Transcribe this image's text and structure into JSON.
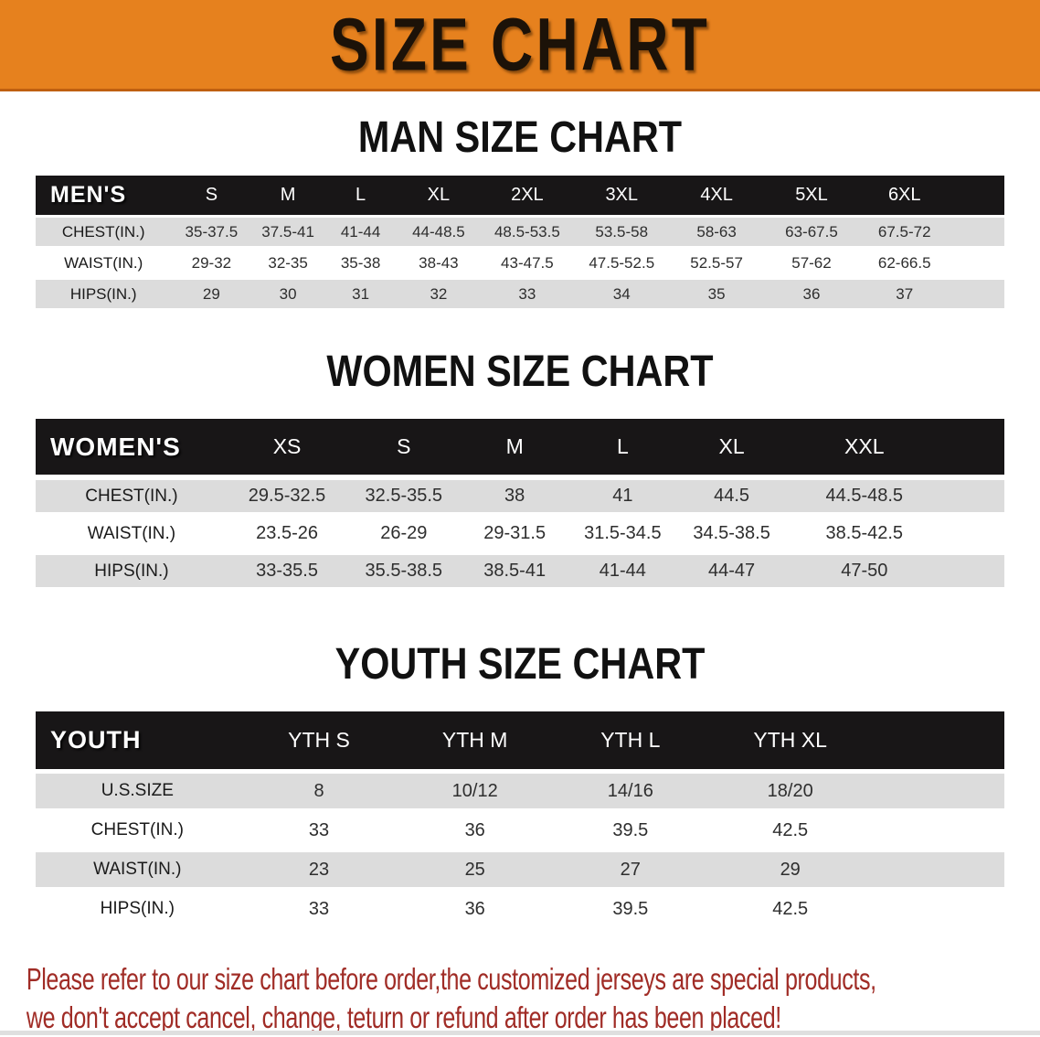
{
  "banner": {
    "title": "SIZE CHART"
  },
  "colors": {
    "banner": "#E6811E",
    "header_bar": "#181617",
    "row_shade": "#DCDCDC",
    "disclaimer": "#A02C26"
  },
  "sections": [
    {
      "title": "MAN SIZE CHART",
      "table": {
        "header": [
          "MEN'S",
          "S",
          "M",
          "L",
          "XL",
          "2XL",
          "3XL",
          "4XL",
          "5XL",
          "6XL"
        ],
        "rows": [
          [
            "CHEST(IN.)",
            "35-37.5",
            "37.5-41",
            "41-44",
            "44-48.5",
            "48.5-53.5",
            "53.5-58",
            "58-63",
            "63-67.5",
            "67.5-72"
          ],
          [
            "WAIST(IN.)",
            "29-32",
            "32-35",
            "35-38",
            "38-43",
            "43-47.5",
            "47.5-52.5",
            "52.5-57",
            "57-62",
            "62-66.5"
          ],
          [
            "HIPS(IN.)",
            "29",
            "30",
            "31",
            "32",
            "33",
            "34",
            "35",
            "36",
            "37"
          ]
        ]
      }
    },
    {
      "title": "WOMEN SIZE CHART",
      "table": {
        "header": [
          "WOMEN'S",
          "XS",
          "S",
          "M",
          "L",
          "XL",
          "XXL"
        ],
        "rows": [
          [
            "CHEST(IN.)",
            "29.5-32.5",
            "32.5-35.5",
            "38",
            "41",
            "44.5",
            "44.5-48.5"
          ],
          [
            "WAIST(IN.)",
            "23.5-26",
            "26-29",
            "29-31.5",
            "31.5-34.5",
            "34.5-38.5",
            "38.5-42.5"
          ],
          [
            "HIPS(IN.)",
            "33-35.5",
            "35.5-38.5",
            "38.5-41",
            "41-44",
            "44-47",
            "47-50"
          ]
        ]
      }
    },
    {
      "title": "YOUTH SIZE CHART",
      "table": {
        "header": [
          "YOUTH",
          "YTH S",
          "YTH M",
          "YTH L",
          "YTH XL"
        ],
        "rows": [
          [
            "U.S.SIZE",
            "8",
            "10/12",
            "14/16",
            "18/20"
          ],
          [
            "CHEST(IN.)",
            "33",
            "36",
            "39.5",
            "42.5"
          ],
          [
            "WAIST(IN.)",
            "23",
            "25",
            "27",
            "29"
          ],
          [
            "HIPS(IN.)",
            "33",
            "36",
            "39.5",
            "42.5"
          ]
        ]
      }
    }
  ],
  "disclaimer": {
    "line1": "Please refer to our size chart before order,the customized jerseys are special products,",
    "line2": "we don't accept cancel, change, teturn or refund after order has been placed!"
  }
}
